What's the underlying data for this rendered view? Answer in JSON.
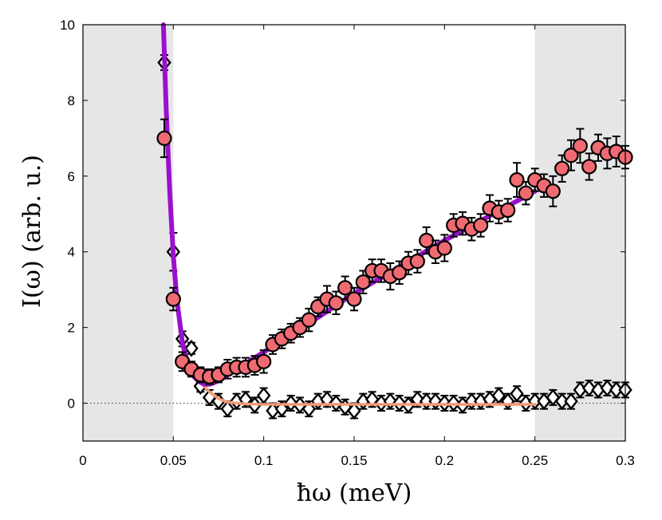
{
  "chart_data": {
    "type": "scatter",
    "xlabel": "ħω (meV)",
    "ylabel": "I(ω) (arb. u.)",
    "xlim": [
      0,
      0.3
    ],
    "ylim": [
      -1,
      10
    ],
    "xticks": [
      0,
      0.05,
      0.1,
      0.15,
      0.2,
      0.25,
      0.3
    ],
    "xtick_labels": [
      "0",
      "0.05",
      "0.1",
      "0.15",
      "0.2",
      "0.25",
      "0.3"
    ],
    "yticks": [
      0,
      2,
      4,
      6,
      8,
      10
    ],
    "ytick_labels": [
      "0",
      "2",
      "4",
      "6",
      "8",
      "10"
    ],
    "shaded_regions": [
      [
        0,
        0.05
      ],
      [
        0.25,
        0.3
      ]
    ],
    "zero_line": 0,
    "colors": {
      "circle_fill": "#f06a72",
      "fit_purple": "#9b10cf",
      "fit_salmon": "#f59a78",
      "shade": "#e6e6e6",
      "marker_edge": "#000000"
    },
    "series": [
      {
        "name": "circles",
        "marker": "circle",
        "x": [
          0.045,
          0.05,
          0.055,
          0.06,
          0.065,
          0.07,
          0.075,
          0.08,
          0.085,
          0.09,
          0.095,
          0.1,
          0.105,
          0.11,
          0.115,
          0.12,
          0.125,
          0.13,
          0.135,
          0.14,
          0.145,
          0.15,
          0.155,
          0.16,
          0.165,
          0.17,
          0.175,
          0.18,
          0.185,
          0.19,
          0.195,
          0.2,
          0.205,
          0.21,
          0.215,
          0.22,
          0.225,
          0.23,
          0.235,
          0.24,
          0.245,
          0.25,
          0.255,
          0.26,
          0.265,
          0.27,
          0.275,
          0.28,
          0.285,
          0.29,
          0.295,
          0.3
        ],
        "y": [
          7.0,
          2.75,
          1.1,
          0.9,
          0.75,
          0.7,
          0.75,
          0.9,
          0.95,
          0.95,
          1.0,
          1.1,
          1.55,
          1.7,
          1.85,
          2.0,
          2.2,
          2.55,
          2.75,
          2.65,
          3.05,
          2.75,
          3.2,
          3.5,
          3.5,
          3.35,
          3.45,
          3.7,
          3.75,
          4.3,
          4.0,
          4.1,
          4.7,
          4.75,
          4.6,
          4.7,
          5.15,
          5.05,
          5.1,
          5.9,
          5.55,
          5.9,
          5.75,
          5.6,
          6.2,
          6.55,
          6.8,
          6.25,
          6.75,
          6.6,
          6.65,
          6.5
        ],
        "err": [
          0.5,
          0.3,
          0.25,
          0.2,
          0.2,
          0.2,
          0.2,
          0.25,
          0.25,
          0.25,
          0.25,
          0.3,
          0.25,
          0.25,
          0.25,
          0.25,
          0.3,
          0.25,
          0.35,
          0.3,
          0.3,
          0.3,
          0.3,
          0.3,
          0.3,
          0.35,
          0.3,
          0.3,
          0.3,
          0.35,
          0.3,
          0.35,
          0.3,
          0.3,
          0.3,
          0.3,
          0.35,
          0.3,
          0.3,
          0.45,
          0.3,
          0.3,
          0.3,
          0.4,
          0.35,
          0.4,
          0.45,
          0.35,
          0.35,
          0.4,
          0.4,
          0.3
        ]
      },
      {
        "name": "diamonds",
        "marker": "diamond",
        "x": [
          0.045,
          0.05,
          0.055,
          0.06,
          0.065,
          0.07,
          0.075,
          0.08,
          0.085,
          0.09,
          0.095,
          0.1,
          0.105,
          0.11,
          0.115,
          0.12,
          0.125,
          0.13,
          0.135,
          0.14,
          0.145,
          0.15,
          0.155,
          0.16,
          0.165,
          0.17,
          0.175,
          0.18,
          0.185,
          0.19,
          0.195,
          0.2,
          0.205,
          0.21,
          0.215,
          0.22,
          0.225,
          0.23,
          0.235,
          0.24,
          0.245,
          0.25,
          0.255,
          0.26,
          0.265,
          0.27,
          0.275,
          0.28,
          0.285,
          0.29,
          0.295,
          0.3
        ],
        "y": [
          9.0,
          4.0,
          1.7,
          1.45,
          0.45,
          0.15,
          0.05,
          -0.15,
          0.05,
          0.1,
          -0.05,
          0.2,
          -0.2,
          -0.15,
          0.0,
          -0.05,
          -0.15,
          0.05,
          0.1,
          0.0,
          -0.1,
          -0.2,
          0.05,
          0.1,
          0.0,
          0.05,
          0.0,
          -0.05,
          0.1,
          0.05,
          0.05,
          0.0,
          0.0,
          -0.05,
          0.05,
          0.05,
          0.1,
          0.2,
          0.05,
          0.25,
          0.0,
          0.05,
          0.05,
          0.15,
          0.05,
          0.05,
          0.35,
          0.4,
          0.35,
          0.4,
          0.35,
          0.35
        ],
        "err": [
          0.2,
          0.5,
          0.2,
          0.15,
          0.15,
          0.2,
          0.2,
          0.2,
          0.2,
          0.2,
          0.2,
          0.2,
          0.2,
          0.2,
          0.2,
          0.2,
          0.2,
          0.2,
          0.2,
          0.2,
          0.2,
          0.2,
          0.2,
          0.2,
          0.2,
          0.2,
          0.2,
          0.2,
          0.2,
          0.2,
          0.2,
          0.2,
          0.2,
          0.2,
          0.2,
          0.2,
          0.2,
          0.2,
          0.2,
          0.2,
          0.2,
          0.2,
          0.2,
          0.2,
          0.2,
          0.2,
          0.2,
          0.2,
          0.2,
          0.2,
          0.2,
          0.2
        ]
      }
    ],
    "fits": [
      {
        "name": "fit-purple",
        "x": [
          0.0445,
          0.046,
          0.048,
          0.05,
          0.052,
          0.055,
          0.058,
          0.061,
          0.064,
          0.067,
          0.07,
          0.073,
          0.076,
          0.08,
          0.09,
          0.1,
          0.12,
          0.15,
          0.2,
          0.25
        ],
        "y": [
          10.0,
          7.8,
          5.6,
          3.9,
          2.7,
          1.6,
          1.0,
          0.72,
          0.58,
          0.5,
          0.5,
          0.55,
          0.62,
          0.75,
          1.05,
          1.35,
          1.95,
          2.9,
          4.3,
          5.6
        ]
      },
      {
        "name": "fit-salmon",
        "x": [
          0.06,
          0.065,
          0.07,
          0.075,
          0.08,
          0.085,
          0.09,
          0.1,
          0.15,
          0.2,
          0.25
        ],
        "y": [
          0.9,
          0.55,
          0.3,
          0.12,
          0.03,
          0.0,
          -0.02,
          -0.03,
          -0.03,
          -0.03,
          -0.03
        ]
      }
    ]
  }
}
